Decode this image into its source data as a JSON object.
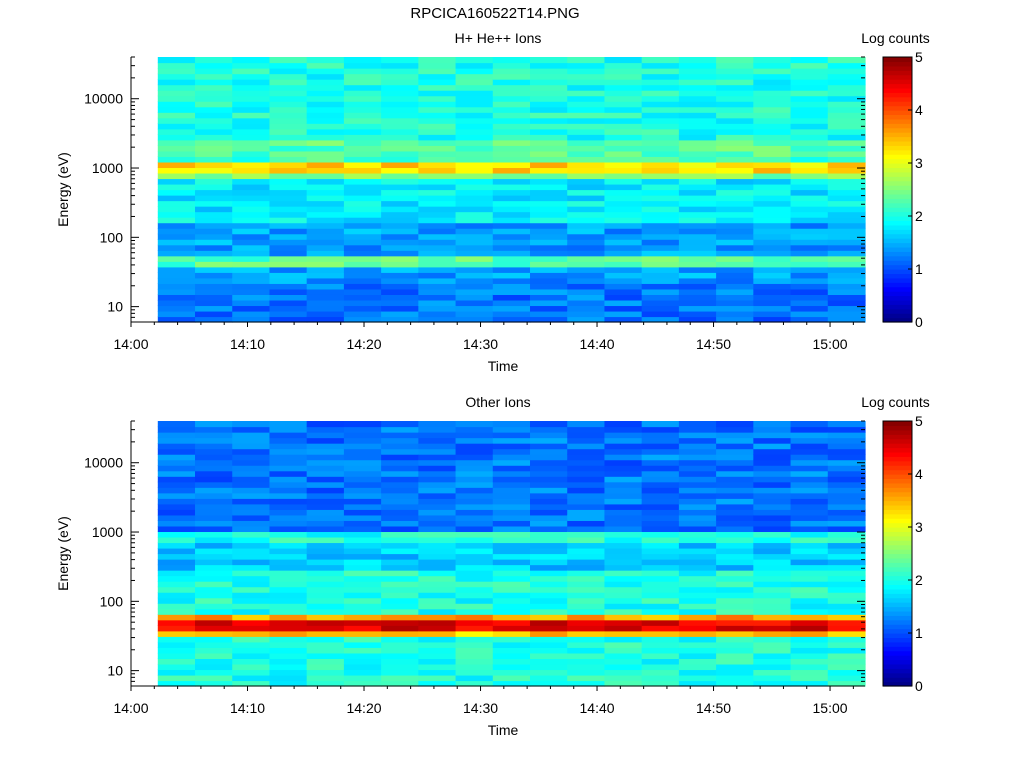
{
  "page": {
    "title": "RPCICA160522T14.PNG"
  },
  "colormap": [
    "#00007f",
    "#0000ff",
    "#007fff",
    "#00ffff",
    "#7fff7f",
    "#ffff00",
    "#ff7f00",
    "#ff0000",
    "#7f0000"
  ],
  "chart_data": [
    {
      "type": "heatmap",
      "title": "H+ He++ Ions",
      "xlabel": "Time",
      "ylabel": "Energy (eV)",
      "colorbar_label": "Log counts",
      "yscale": "log",
      "xlim": [
        "14:00",
        "15:03"
      ],
      "ylim": [
        6,
        40000
      ],
      "x_ticks": [
        "14:00",
        "14:10",
        "14:20",
        "14:30",
        "14:40",
        "14:50",
        "15:00"
      ],
      "y_ticks": [
        "10",
        "100",
        "1000",
        "10000"
      ],
      "colorbar_ticks": [
        "0",
        "1",
        "2",
        "3",
        "4",
        "5"
      ],
      "zlim": [
        0,
        5
      ],
      "data_start": "14:02.3",
      "data_end": "15:03",
      "time_bins": 19,
      "background_level": 2.0,
      "energy_bands": [
        {
          "emin": 6,
          "emax": 20,
          "level": 1.2
        },
        {
          "emin": 20,
          "emax": 40,
          "level": 1.4
        },
        {
          "emin": 40,
          "emax": 55,
          "level": 2.3
        },
        {
          "emin": 55,
          "emax": 160,
          "level": 1.4
        },
        {
          "emin": 160,
          "emax": 700,
          "level": 1.8
        },
        {
          "emin": 700,
          "emax": 850,
          "level": 2.5
        },
        {
          "emin": 850,
          "emax": 1150,
          "level": 3.3
        },
        {
          "emin": 1150,
          "emax": 1600,
          "level": 2.2
        },
        {
          "emin": 1600,
          "emax": 2600,
          "level": 2.3
        },
        {
          "emin": 2600,
          "emax": 40000,
          "level": 2.0
        }
      ]
    },
    {
      "type": "heatmap",
      "title": "Other Ions",
      "xlabel": "Time",
      "ylabel": "Energy (eV)",
      "colorbar_label": "Log counts",
      "yscale": "log",
      "xlim": [
        "14:00",
        "15:03"
      ],
      "ylim": [
        6,
        40000
      ],
      "x_ticks": [
        "14:00",
        "14:10",
        "14:20",
        "14:30",
        "14:40",
        "14:50",
        "15:00"
      ],
      "y_ticks": [
        "10",
        "100",
        "1000",
        "10000"
      ],
      "colorbar_ticks": [
        "0",
        "1",
        "2",
        "3",
        "4",
        "5"
      ],
      "zlim": [
        0,
        5
      ],
      "data_start": "14:02.3",
      "data_end": "15:03",
      "time_bins": 19,
      "background_level": 1.3,
      "energy_bands": [
        {
          "emin": 6,
          "emax": 32,
          "level": 2.0
        },
        {
          "emin": 32,
          "emax": 38,
          "level": 3.4
        },
        {
          "emin": 38,
          "emax": 58,
          "level": 4.5
        },
        {
          "emin": 58,
          "emax": 64,
          "level": 3.6
        },
        {
          "emin": 64,
          "emax": 300,
          "level": 2.0
        },
        {
          "emin": 300,
          "emax": 700,
          "level": 1.6
        },
        {
          "emin": 700,
          "emax": 1100,
          "level": 2.0
        },
        {
          "emin": 1100,
          "emax": 40000,
          "level": 1.2
        }
      ]
    }
  ]
}
